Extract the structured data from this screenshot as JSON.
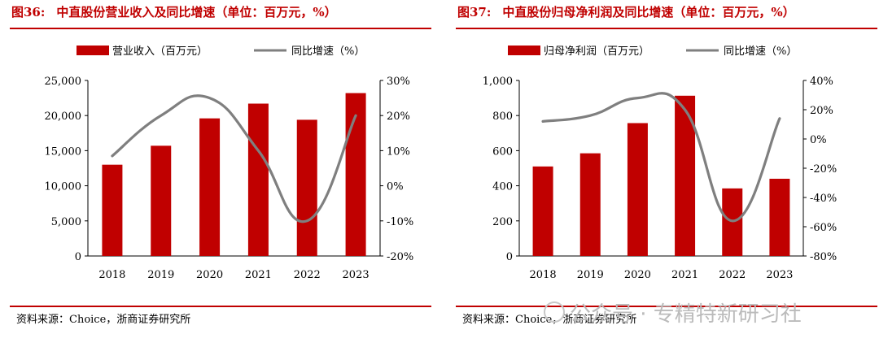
{
  "colors": {
    "accent": "#c00000",
    "bar": "#c00000",
    "line": "#7f7f7f",
    "watermark": "#bbbbbb"
  },
  "watermark": {
    "text": "公众号 · 专精特新研习社",
    "icon": "wechat-icon"
  },
  "panels": [
    {
      "fig_num": "图36:",
      "fig_title": "中直股份营业收入及同比增速（单位：百万元，%）",
      "source": "资料来源：Choice，浙商证券研究所"
    },
    {
      "fig_num": "图37:",
      "fig_title": "中直股份归母净利润及同比增速（单位：百万元，%）",
      "source": "资料来源：Choice，浙商证券研究所"
    }
  ],
  "chart_data": [
    {
      "type": "bar",
      "title": "中直股份营业收入及同比增速（单位：百万元，%）",
      "categories": [
        "2018",
        "2019",
        "2020",
        "2021",
        "2022",
        "2023"
      ],
      "series": [
        {
          "name": "营业收入（百万元）",
          "type": "bar",
          "axis": "left",
          "values": [
            13000,
            15700,
            19600,
            21700,
            19400,
            23200
          ]
        },
        {
          "name": "同比增速（%）",
          "type": "line",
          "axis": "right",
          "values": [
            8.5,
            20.0,
            25.0,
            10.0,
            -10.0,
            20.0
          ]
        }
      ],
      "y_left": {
        "min": 0,
        "max": 25000,
        "step": 5000,
        "tick_labels": [
          "0",
          "5,000",
          "10,000",
          "15,000",
          "20,000",
          "25,000"
        ]
      },
      "y_right": {
        "min": -20,
        "max": 30,
        "step": 10,
        "tick_labels": [
          "-20%",
          "-10%",
          "0%",
          "10%",
          "20%",
          "30%"
        ]
      },
      "legend": "top"
    },
    {
      "type": "bar",
      "title": "中直股份归母净利润及同比增速（单位：百万元，%）",
      "categories": [
        "2018",
        "2019",
        "2020",
        "2021",
        "2022",
        "2023"
      ],
      "series": [
        {
          "name": "归母净利润（百万元）",
          "type": "bar",
          "axis": "left",
          "values": [
            510,
            585,
            757,
            913,
            385,
            440
          ]
        },
        {
          "name": "同比增速（%）",
          "type": "line",
          "axis": "right",
          "values": [
            12,
            16,
            28,
            20,
            -56,
            14
          ]
        }
      ],
      "y_left": {
        "min": 0,
        "max": 1000,
        "step": 200,
        "tick_labels": [
          "0",
          "200",
          "400",
          "600",
          "800",
          "1,000"
        ]
      },
      "y_right": {
        "min": -80,
        "max": 40,
        "step": 20,
        "tick_labels": [
          "-80%",
          "-60%",
          "-40%",
          "-20%",
          "0%",
          "20%",
          "40%"
        ]
      },
      "legend": "top"
    }
  ]
}
